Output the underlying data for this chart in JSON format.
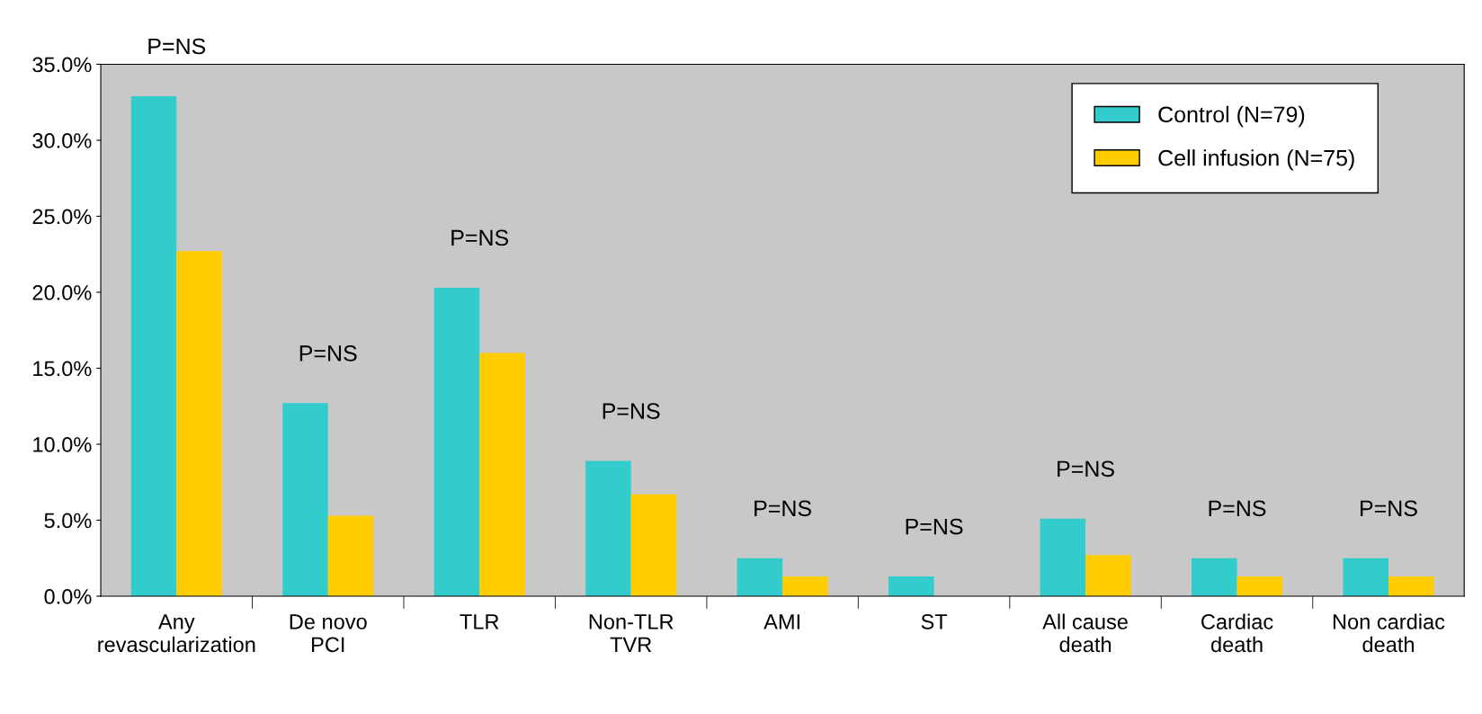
{
  "chart_data": {
    "type": "bar",
    "categories": [
      "Any\nrevascularization",
      "De novo\nPCI",
      "TLR",
      "Non-TLR\nTVR",
      "AMI",
      "ST",
      "All cause\ndeath",
      "Cardiac\ndeath",
      "Non cardiac\ndeath"
    ],
    "series": [
      {
        "name": "Control (N=79)",
        "color": "#33cccc",
        "values": [
          32.9,
          12.7,
          20.3,
          8.9,
          2.5,
          1.3,
          5.1,
          2.5,
          2.5
        ]
      },
      {
        "name": "Cell infusion (N=75)",
        "color": "#ffcc00",
        "values": [
          22.7,
          5.3,
          16.0,
          6.7,
          1.3,
          0,
          2.7,
          1.3,
          1.3
        ]
      }
    ],
    "ylim": [
      0,
      35
    ],
    "yticks": [
      {
        "value": 0,
        "label": "0.0%"
      },
      {
        "value": 5,
        "label": "5.0%"
      },
      {
        "value": 10,
        "label": "10.0%"
      },
      {
        "value": 15,
        "label": "15.0%"
      },
      {
        "value": 20,
        "label": "20.0%"
      },
      {
        "value": 25,
        "label": "25.0%"
      },
      {
        "value": 30,
        "label": "30.0%"
      },
      {
        "value": 35,
        "label": "35.0%"
      }
    ],
    "annotations": [
      "P=NS",
      "P=NS",
      "P=NS",
      "P=NS",
      "P=NS",
      "P=NS",
      "P=NS",
      "P=NS",
      "P=NS"
    ],
    "legend": "top right",
    "grid": false
  }
}
